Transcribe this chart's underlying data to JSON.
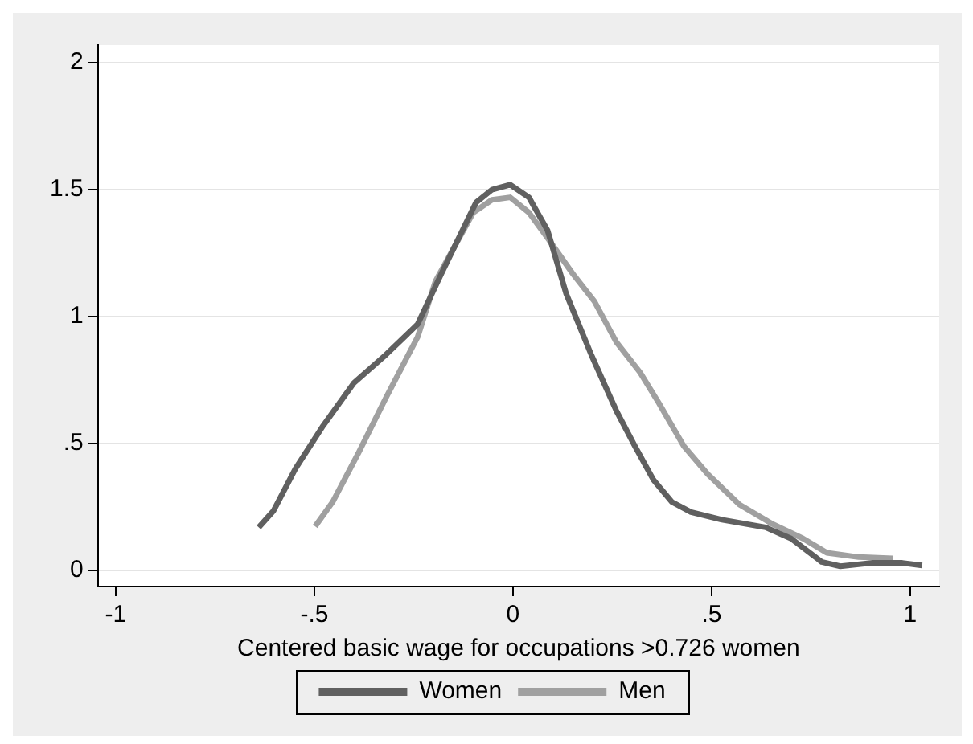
{
  "chart_data": {
    "type": "line",
    "xlabel": "Centered basic wage for occupations >0.726 women",
    "xlim": [
      -1.045,
      1.073
    ],
    "ylim": [
      -0.063,
      2.07
    ],
    "xticks": [
      -1,
      {
        "value": -0.5,
        "label": "-.5"
      },
      0,
      {
        "value": 0.5,
        "label": ".5"
      },
      1
    ],
    "yticks": [
      0,
      {
        "value": 0.5,
        "label": ".5"
      },
      1,
      {
        "value": 1.5,
        "label": "1.5"
      },
      2
    ],
    "grid": "y",
    "legend": "bottom",
    "marker": "none",
    "line_style": "solid",
    "series": [
      {
        "name": "Women",
        "color": "#606060",
        "x": [
          -0.64,
          -0.603,
          -0.548,
          -0.478,
          -0.4,
          -0.32,
          -0.24,
          -0.18,
          -0.093,
          -0.053,
          -0.007,
          0.04,
          0.087,
          0.134,
          0.197,
          0.26,
          0.307,
          0.354,
          0.4,
          0.448,
          0.526,
          0.636,
          0.7,
          0.777,
          0.824,
          0.903,
          0.98,
          1.03
        ],
        "values": [
          0.17,
          0.235,
          0.4,
          0.57,
          0.74,
          0.85,
          0.97,
          1.17,
          1.45,
          1.5,
          1.52,
          1.47,
          1.34,
          1.09,
          0.85,
          0.63,
          0.49,
          0.356,
          0.27,
          0.23,
          0.2,
          0.17,
          0.126,
          0.034,
          0.017,
          0.03,
          0.03,
          0.02
        ]
      },
      {
        "name": "Men",
        "color": "#a0a0a0",
        "x": [
          -0.498,
          -0.454,
          -0.39,
          -0.32,
          -0.24,
          -0.195,
          -0.1,
          -0.053,
          -0.007,
          0.04,
          0.087,
          0.15,
          0.205,
          0.26,
          0.32,
          0.367,
          0.43,
          0.49,
          0.57,
          0.65,
          0.73,
          0.79,
          0.87,
          0.956
        ],
        "values": [
          0.174,
          0.27,
          0.46,
          0.68,
          0.92,
          1.14,
          1.41,
          1.46,
          1.47,
          1.41,
          1.31,
          1.17,
          1.06,
          0.9,
          0.78,
          0.66,
          0.49,
          0.38,
          0.26,
          0.186,
          0.126,
          0.07,
          0.053,
          0.048
        ]
      }
    ]
  }
}
